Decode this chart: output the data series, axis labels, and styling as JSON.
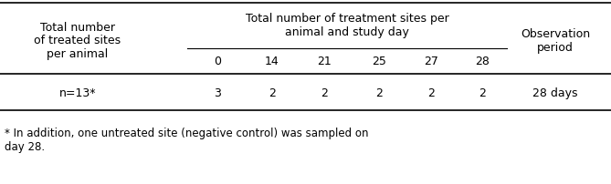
{
  "col1_header": "Total number\nof treated sites\nper animal",
  "span_header": "Total number of treatment sites per\nanimal and study day",
  "col_last_header": "Observation\nperiod",
  "col_headers_sub": [
    "0",
    "14",
    "21",
    "25",
    "27",
    "28"
  ],
  "data_row": [
    "n=13*",
    "3",
    "2",
    "2",
    "2",
    "2",
    "2",
    "28 days"
  ],
  "footnote": "* In addition, one untreated site (negative control) was sampled on\nday 28.",
  "bg_color": "#ffffff",
  "text_color": "#000000",
  "font_size": 9.0,
  "line_color": "#000000"
}
